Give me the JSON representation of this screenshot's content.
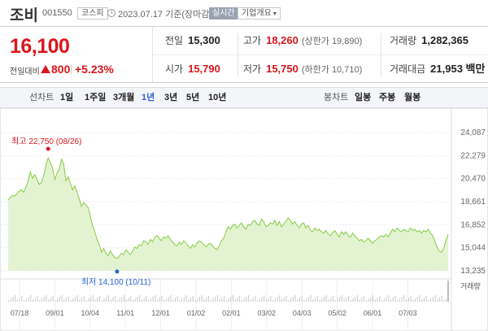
{
  "header": {
    "name": "조비",
    "code": "001550",
    "market": "코스피",
    "datetime": "2023.07.17  기준(장마감)",
    "realtime": "실시간",
    "company_info": "기업개요",
    "chevron": "chevron-down-icon"
  },
  "price": {
    "current": "16,100",
    "change_label": "전일대비",
    "change_value": "800",
    "change_rate": "+5.23%",
    "direction": "up",
    "color_up": "#d9161c"
  },
  "stats": {
    "prev_close": {
      "label": "전일",
      "value": "15,300"
    },
    "high": {
      "label": "고가",
      "value": "18,260",
      "sub": "(상한가 19,890)"
    },
    "volume": {
      "label": "거래량",
      "value": "1,282,365"
    },
    "open": {
      "label": "시가",
      "value": "15,790"
    },
    "low": {
      "label": "저가",
      "value": "15,750",
      "sub": "(하한가 10,710)"
    },
    "amount": {
      "label": "거래대금",
      "value": "21,953 백만"
    }
  },
  "period_bar": {
    "line_label": "선차트",
    "periods": [
      "1일",
      "1주일",
      "3개월",
      "1년",
      "3년",
      "5년",
      "10년"
    ],
    "active_period": "1년",
    "candle_label": "봉차트",
    "candles": [
      "일봉",
      "주봉",
      "월봉"
    ]
  },
  "chart_data": {
    "type": "area",
    "title": "",
    "x_ticks": [
      "07/18",
      "09/01",
      "10/04",
      "11/01",
      "12/01",
      "01/02",
      "02/01",
      "03/02",
      "04/03",
      "05/02",
      "06/01",
      "07/03"
    ],
    "y_ticks": [
      "24,087",
      "22,279",
      "20,470",
      "18,661",
      "16,852",
      "15,044",
      "13,235"
    ],
    "ylim": [
      13235,
      24087
    ],
    "max_annotation": "최고 22,750 (08/26)",
    "min_annotation": "최저 14,100 (10/11)",
    "volume_label": "거래량",
    "line_color": "#88cc44",
    "fill_color": "#e3f3d2",
    "values": [
      18800,
      19000,
      19150,
      19100,
      19300,
      19500,
      19600,
      19400,
      19800,
      20300,
      21000,
      20500,
      20800,
      20400,
      20000,
      20200,
      20700,
      21500,
      22100,
      21700,
      21300,
      20400,
      20900,
      21200,
      22000,
      21600,
      20300,
      20600,
      20100,
      19600,
      19900,
      19400,
      18900,
      18300,
      18600,
      18400,
      18200,
      17500,
      16800,
      16300,
      15700,
      15300,
      14700,
      15000,
      14600,
      14400,
      14800,
      14500,
      14300,
      14200,
      14400,
      14600,
      14500,
      14900,
      14700,
      14500,
      14800,
      15100,
      15000,
      15300,
      15200,
      15600,
      15500,
      15300,
      15700,
      15500,
      15900,
      16000,
      15800,
      15600,
      15900,
      15800,
      16000,
      15700,
      15500,
      15300,
      15200,
      15500,
      15300,
      15600,
      15400,
      15200,
      15000,
      15300,
      15100,
      15400,
      15600,
      15500,
      15300,
      15100,
      15300,
      15400,
      15200,
      15000,
      14900,
      15200,
      15600,
      15800,
      16300,
      16700,
      16500,
      16800,
      16900,
      16600,
      16800,
      17000,
      16700,
      16500,
      16900,
      16800,
      17100,
      17200,
      16900,
      16800,
      17300,
      17100,
      16700,
      16800,
      17000,
      16900,
      17200,
      16800,
      17100,
      16700,
      16900,
      17100,
      17400,
      17200,
      16900,
      17100,
      16800,
      16600,
      16900,
      17000,
      16600,
      16800,
      16400,
      16300,
      16600,
      16400,
      16500,
      16300,
      16200,
      16400,
      16100,
      16000,
      16200,
      16400,
      16100,
      15900,
      16300,
      16100,
      16300,
      16000,
      15900,
      16200,
      16000,
      15800,
      15600,
      15700,
      15500,
      15600,
      15800,
      15600,
      15400,
      15600,
      15700,
      15900,
      16000,
      15900,
      16100,
      15900,
      16200,
      16500,
      16300,
      16600,
      16400,
      16300,
      16500,
      16400,
      16300,
      16600,
      16400,
      16500,
      16300,
      16400,
      16200,
      16400,
      16300,
      16500,
      16200,
      16000,
      15600,
      15100,
      14800,
      14700,
      15000,
      15600,
      16100
    ]
  }
}
